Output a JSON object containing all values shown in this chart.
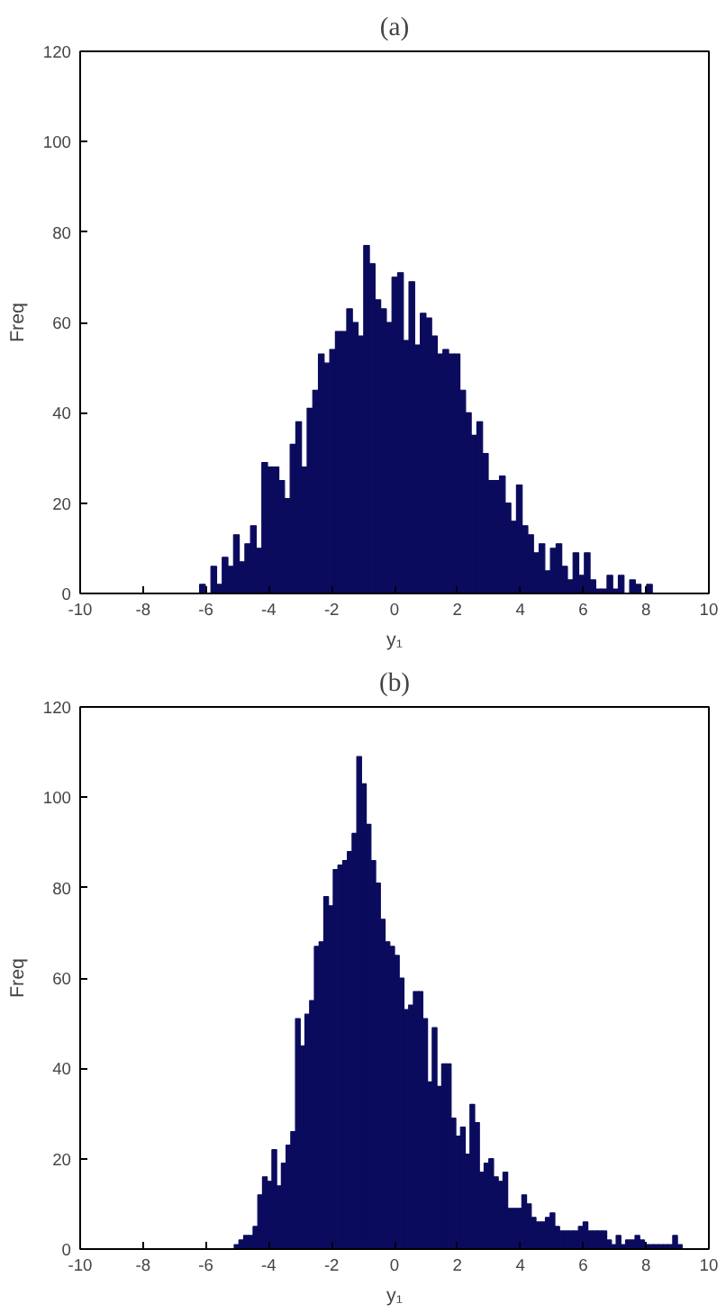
{
  "chart_data": [
    {
      "type": "histogram",
      "title": "(a)",
      "xlabel": "y₁",
      "ylabel": "Freq",
      "color": "#0b0b5e",
      "bins": [
        -6.2,
        -6.02,
        -5.84,
        -5.66,
        -5.48,
        -5.3,
        -5.12,
        -4.94,
        -4.76,
        -4.58,
        -4.4,
        -4.22,
        -4.04,
        -3.86,
        -3.68,
        -3.5,
        -3.32,
        -3.14,
        -2.96,
        -2.78,
        -2.6,
        -2.42,
        -2.24,
        -2.06,
        -1.88,
        -1.7,
        -1.52,
        -1.34,
        -1.16,
        -0.98,
        -0.8,
        -0.62,
        -0.44,
        -0.26,
        -0.08,
        0.1,
        0.28,
        0.46,
        0.64,
        0.82,
        1.0,
        1.18,
        1.36,
        1.54,
        1.72,
        1.9,
        2.08,
        2.26,
        2.44,
        2.62,
        2.8,
        2.98,
        3.16,
        3.34,
        3.52,
        3.7,
        3.88,
        4.06,
        4.24,
        4.42,
        4.6,
        4.78,
        4.96,
        5.14,
        5.32,
        5.5,
        5.68,
        5.86,
        6.04,
        6.22,
        6.4,
        6.58,
        6.76,
        6.94,
        7.12,
        7.3,
        7.48,
        7.66,
        7.84,
        8.02,
        8.2
      ],
      "values": [
        2,
        0,
        6,
        2,
        8,
        6,
        13,
        7,
        11,
        15,
        10,
        29,
        28,
        28,
        25,
        21,
        33,
        38,
        28,
        41,
        45,
        53,
        51,
        54,
        58,
        58,
        63,
        60,
        57,
        77,
        73,
        65,
        63,
        60,
        70,
        71,
        56,
        69,
        55,
        62,
        61,
        57,
        53,
        54,
        53,
        53,
        45,
        40,
        35,
        38,
        31,
        25,
        25,
        26,
        20,
        16,
        24,
        15,
        13,
        9,
        11,
        5,
        10,
        11,
        6,
        3,
        9,
        4,
        9,
        3,
        1,
        1,
        4,
        1,
        4,
        0,
        3,
        2,
        0,
        2
      ],
      "xlim": [
        -10,
        10
      ],
      "ylim": [
        0,
        120
      ],
      "xticks": [
        -10,
        -8,
        -6,
        -4,
        -2,
        0,
        2,
        4,
        6,
        8,
        10
      ],
      "yticks": [
        0,
        20,
        40,
        60,
        80,
        100,
        120
      ],
      "grid": false
    },
    {
      "type": "histogram",
      "title": "(b)",
      "xlabel": "y₁",
      "ylabel": "Freq",
      "color": "#0b0b5e",
      "bins": [
        -5.1,
        -4.95,
        -4.8,
        -4.65,
        -4.5,
        -4.35,
        -4.2,
        -4.05,
        -3.9,
        -3.75,
        -3.6,
        -3.45,
        -3.3,
        -3.15,
        -3.0,
        -2.85,
        -2.7,
        -2.55,
        -2.4,
        -2.25,
        -2.1,
        -1.95,
        -1.8,
        -1.65,
        -1.5,
        -1.35,
        -1.2,
        -1.05,
        -0.9,
        -0.75,
        -0.6,
        -0.45,
        -0.3,
        -0.15,
        0,
        0.15,
        0.3,
        0.45,
        0.6,
        0.75,
        0.9,
        1.05,
        1.2,
        1.35,
        1.5,
        1.65,
        1.8,
        1.95,
        2.1,
        2.25,
        2.4,
        2.55,
        2.7,
        2.85,
        3.0,
        3.15,
        3.3,
        3.45,
        3.6,
        3.75,
        3.9,
        4.05,
        4.2,
        4.35,
        4.5,
        4.65,
        4.8,
        4.95,
        5.1,
        5.25,
        5.4,
        5.55,
        5.7,
        5.85,
        6.0,
        6.15,
        6.3,
        6.45,
        6.6,
        6.75,
        6.9,
        7.05,
        7.2,
        7.35,
        7.5,
        7.65,
        7.8,
        7.95,
        8.1,
        8.25,
        8.4,
        8.55,
        8.7,
        8.85,
        9.0,
        9.15
      ],
      "values": [
        1,
        2,
        3,
        3,
        5,
        12,
        16,
        15,
        22,
        14,
        19,
        23,
        26,
        51,
        45,
        52,
        55,
        67,
        68,
        78,
        76,
        84,
        85,
        86,
        88,
        92,
        109,
        103,
        94,
        86,
        81,
        73,
        68,
        67,
        65,
        60,
        53,
        54,
        57,
        57,
        51,
        37,
        49,
        36,
        41,
        41,
        29,
        25,
        27,
        21,
        32,
        28,
        17,
        19,
        20,
        16,
        15,
        17,
        9,
        9,
        9,
        12,
        10,
        7,
        6,
        6,
        7,
        8,
        5,
        4,
        4,
        4,
        4,
        5,
        6,
        4,
        4,
        4,
        4,
        2,
        1,
        3,
        1,
        2,
        2,
        3,
        2,
        1,
        1,
        1,
        1,
        1,
        1,
        3,
        1
      ],
      "xlim": [
        -10,
        10
      ],
      "ylim": [
        0,
        120
      ],
      "xticks": [
        -10,
        -8,
        -6,
        -4,
        -2,
        0,
        2,
        4,
        6,
        8,
        10
      ],
      "yticks": [
        0,
        20,
        40,
        60,
        80,
        100,
        120
      ],
      "grid": false
    }
  ]
}
